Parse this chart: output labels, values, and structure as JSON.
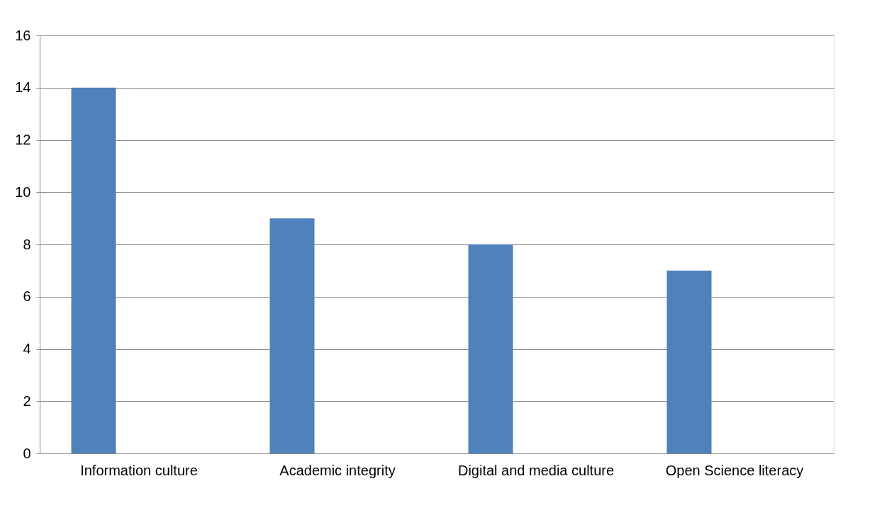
{
  "chart_data": {
    "type": "bar",
    "categories": [
      "Information culture",
      "Academic integrity",
      "Digital and media culture",
      "Open Science literacy"
    ],
    "values": [
      14,
      9,
      8,
      7
    ],
    "color": "#4f81bd",
    "ylim": [
      0,
      16
    ],
    "yticks": [
      0,
      2,
      4,
      6,
      8,
      10,
      12,
      14,
      16
    ],
    "grid": "y"
  }
}
